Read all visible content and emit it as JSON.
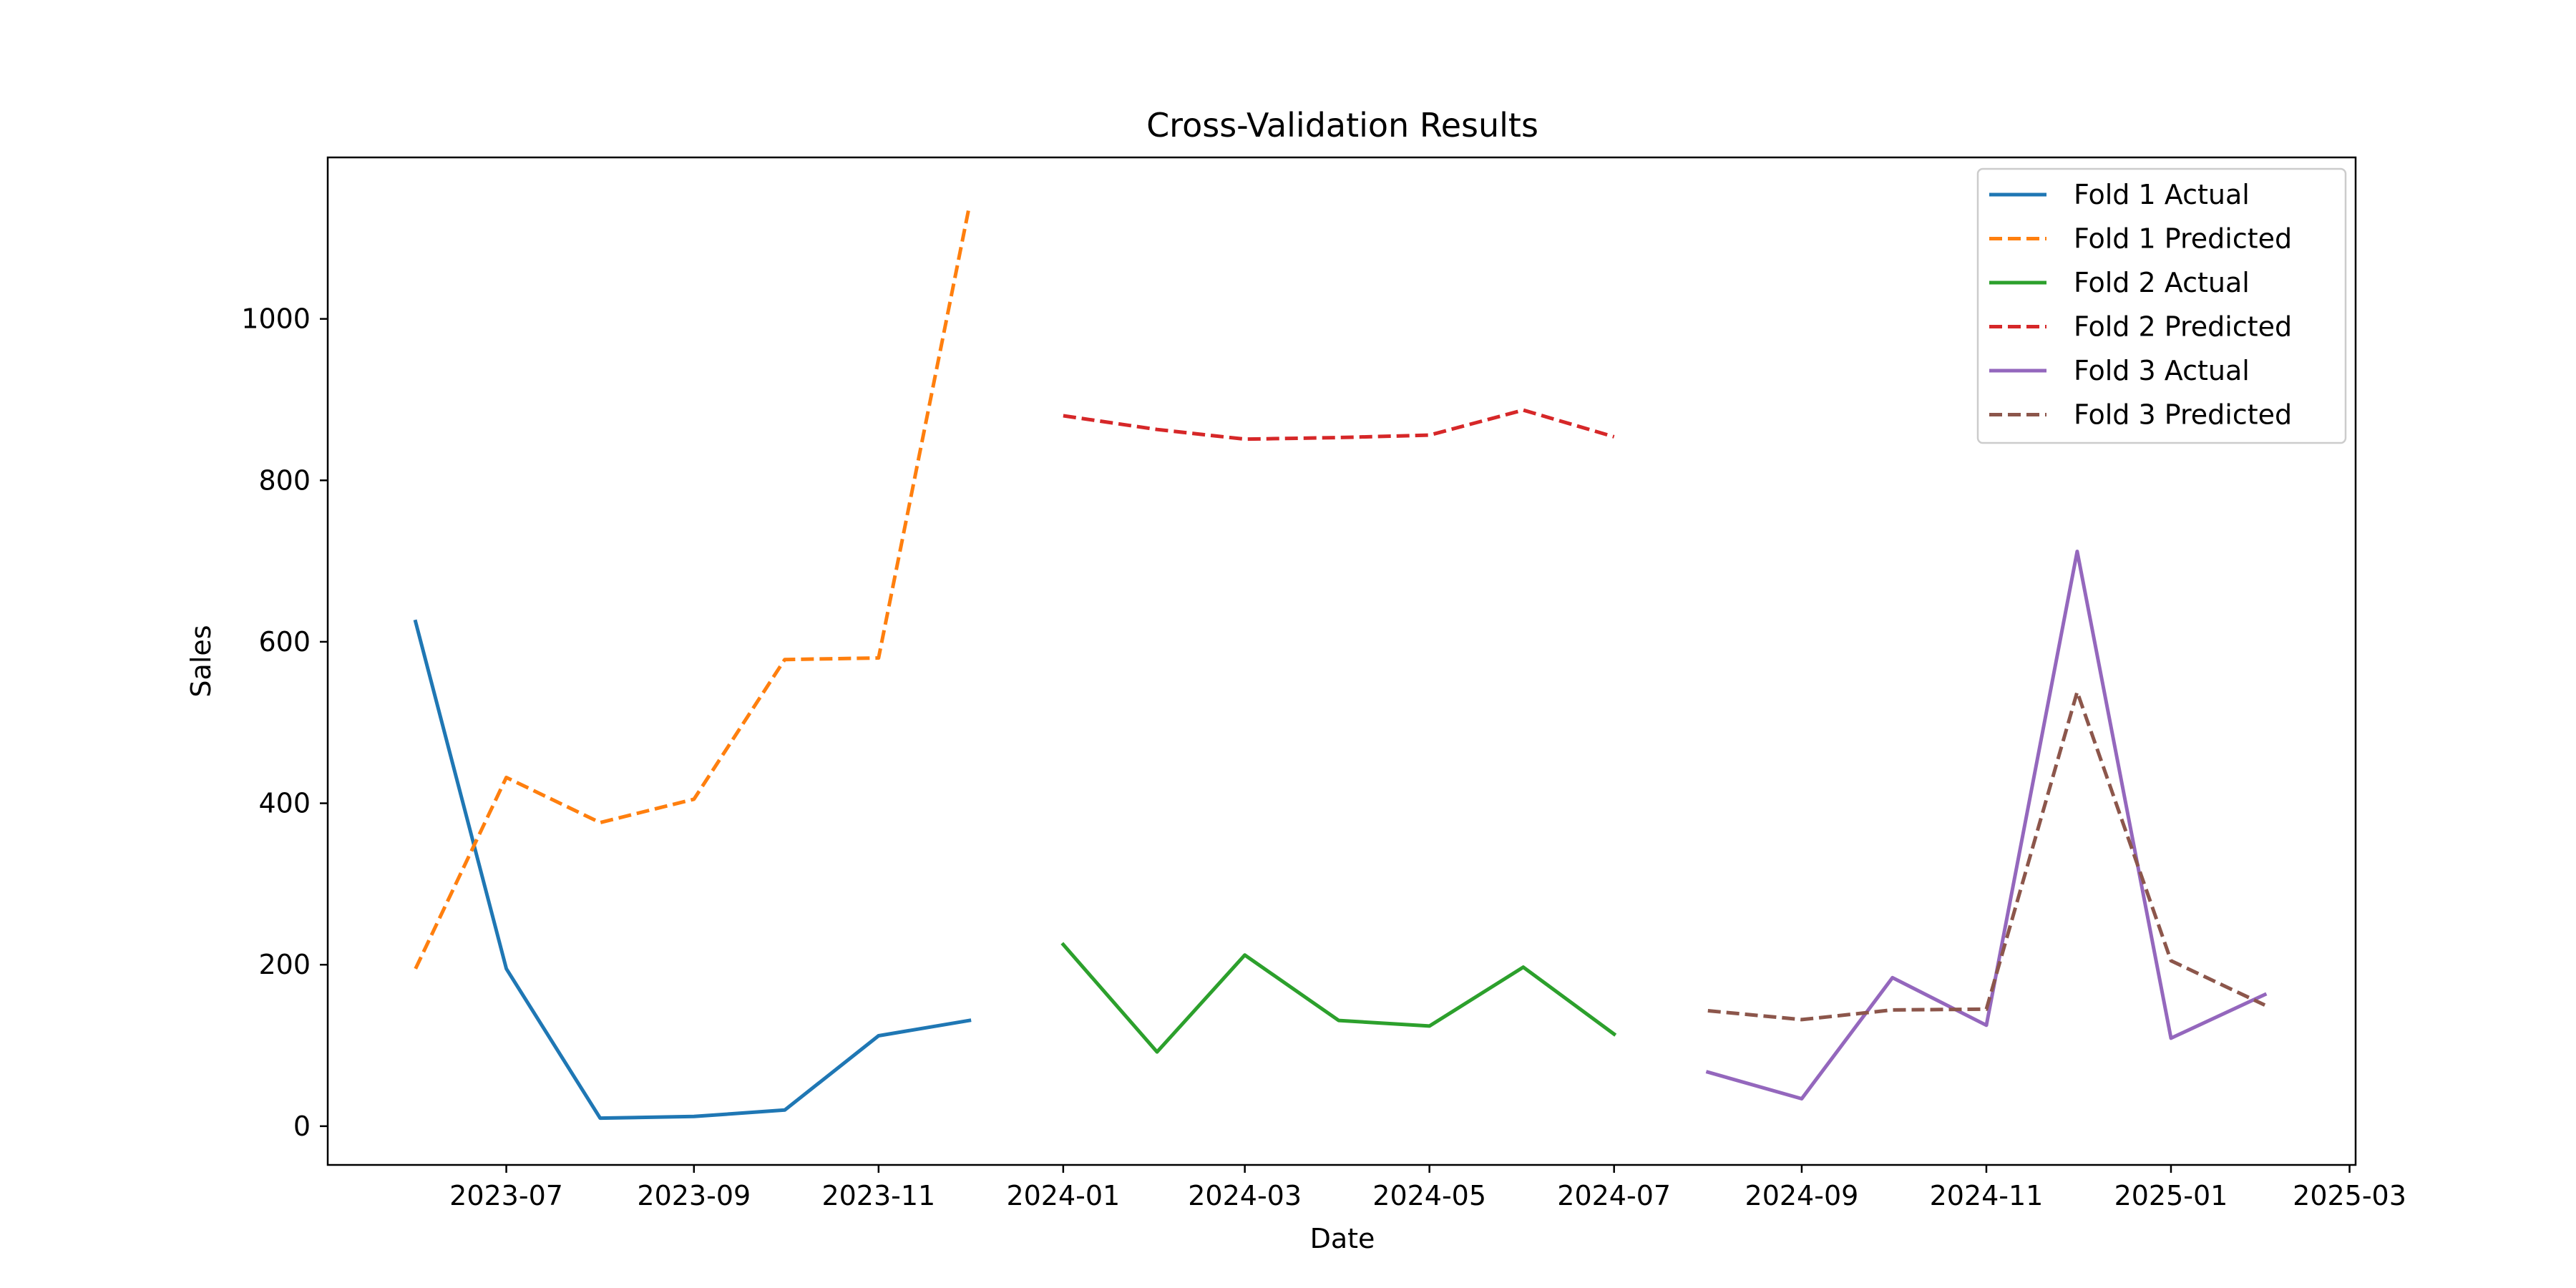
{
  "chart_data": {
    "type": "line",
    "title": "Cross-Validation Results",
    "xlabel": "Date",
    "ylabel": "Sales",
    "x_axis_type": "date",
    "xlim": [
      "2023-05-03",
      "2025-03-03"
    ],
    "ylim": [
      -48,
      1200
    ],
    "xticks": [
      "2023-07",
      "2023-09",
      "2023-11",
      "2024-01",
      "2024-03",
      "2024-05",
      "2024-07",
      "2024-09",
      "2024-11",
      "2025-01",
      "2025-03"
    ],
    "yticks": [
      0,
      200,
      400,
      600,
      800,
      1000
    ],
    "grid": false,
    "legend_position": "top-right",
    "series": [
      {
        "name": "Fold 1 Actual",
        "color": "#1f77b4",
        "style": "solid",
        "x": [
          "2023-06-01",
          "2023-07-01",
          "2023-08-01",
          "2023-09-01",
          "2023-10-01",
          "2023-11-01",
          "2023-12-01"
        ],
        "y": [
          625,
          195,
          10,
          12,
          20,
          112,
          131
        ]
      },
      {
        "name": "Fold 1 Predicted",
        "color": "#ff7f0e",
        "style": "dashed",
        "x": [
          "2023-06-01",
          "2023-07-01",
          "2023-08-01",
          "2023-09-01",
          "2023-10-01",
          "2023-11-01",
          "2023-12-01"
        ],
        "y": [
          195,
          432,
          376,
          405,
          578,
          580,
          1140
        ]
      },
      {
        "name": "Fold 2 Actual",
        "color": "#2ca02c",
        "style": "solid",
        "x": [
          "2024-01-01",
          "2024-02-01",
          "2024-03-01",
          "2024-04-01",
          "2024-05-01",
          "2024-06-01",
          "2024-07-01"
        ],
        "y": [
          225,
          92,
          212,
          131,
          124,
          197,
          114
        ]
      },
      {
        "name": "Fold 2 Predicted",
        "color": "#d62728",
        "style": "dashed",
        "x": [
          "2024-01-01",
          "2024-02-01",
          "2024-03-01",
          "2024-04-01",
          "2024-05-01",
          "2024-06-01",
          "2024-07-01"
        ],
        "y": [
          880,
          863,
          851,
          853,
          856,
          887,
          854
        ]
      },
      {
        "name": "Fold 3 Actual",
        "color": "#9467bd",
        "style": "solid",
        "x": [
          "2024-08-01",
          "2024-09-01",
          "2024-10-01",
          "2024-11-01",
          "2024-12-01",
          "2025-01-01",
          "2025-02-01"
        ],
        "y": [
          67,
          34,
          184,
          125,
          712,
          109,
          163
        ]
      },
      {
        "name": "Fold 3 Predicted",
        "color": "#8c564b",
        "style": "dashed",
        "x": [
          "2024-08-01",
          "2024-09-01",
          "2024-10-01",
          "2024-11-01",
          "2024-12-01",
          "2025-01-01",
          "2025-02-01"
        ],
        "y": [
          143,
          132,
          144,
          145,
          538,
          205,
          150
        ]
      }
    ]
  }
}
